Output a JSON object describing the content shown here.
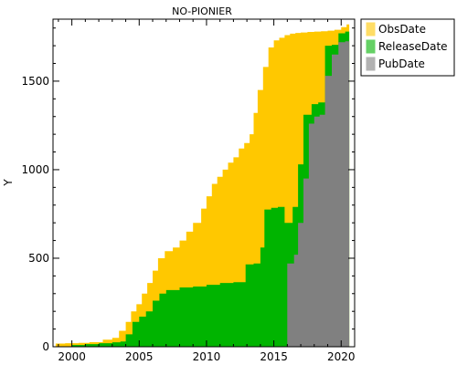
{
  "chart_data": {
    "type": "area",
    "title": "NO-PIONIER",
    "xlabel": "",
    "ylabel": "Y",
    "xlim": [
      1998.6,
      2021.0
    ],
    "ylim": [
      0,
      1850
    ],
    "xticks": [
      2000,
      2005,
      2010,
      2015,
      2020
    ],
    "yticks": [
      0,
      500,
      1000,
      1500
    ],
    "grid": false,
    "legend_position": "top-right-outside",
    "series": [
      {
        "name": "ObsDate",
        "color": "#ffc800",
        "x": [
          1998.8,
          1999.5,
          2000.5,
          2001.3,
          2002.3,
          2003.0,
          2003.5,
          2004.0,
          2004.4,
          2004.8,
          2005.2,
          2005.6,
          2006.0,
          2006.4,
          2006.9,
          2007.5,
          2008.0,
          2008.5,
          2009.0,
          2009.6,
          2010.0,
          2010.4,
          2010.8,
          2011.2,
          2011.6,
          2012.0,
          2012.4,
          2012.8,
          2013.2,
          2013.5,
          2013.8,
          2014.2,
          2014.6,
          2015.0,
          2015.4,
          2015.8,
          2016.2,
          2016.6,
          2017.0,
          2017.5,
          2018.0,
          2018.5,
          2019.0,
          2019.5,
          2020.0,
          2020.4,
          2020.6
        ],
        "y": [
          18,
          20,
          22,
          26,
          40,
          50,
          90,
          140,
          200,
          240,
          300,
          360,
          430,
          500,
          540,
          560,
          600,
          650,
          700,
          780,
          850,
          920,
          960,
          1000,
          1040,
          1070,
          1120,
          1150,
          1200,
          1320,
          1450,
          1580,
          1690,
          1730,
          1745,
          1760,
          1768,
          1772,
          1775,
          1778,
          1780,
          1782,
          1785,
          1790,
          1805,
          1820,
          1845
        ]
      },
      {
        "name": "ReleaseDate",
        "color": "#00b400",
        "x": [
          1998.8,
          2000.0,
          2001.0,
          2002.0,
          2003.0,
          2003.6,
          2004.0,
          2004.5,
          2005.0,
          2005.5,
          2006.0,
          2006.5,
          2007.0,
          2008.0,
          2009.0,
          2010.0,
          2011.0,
          2012.0,
          2012.9,
          2013.5,
          2014.0,
          2014.3,
          2014.8,
          2015.3,
          2015.8,
          2016.4,
          2016.8,
          2017.2,
          2017.8,
          2018.3,
          2018.8,
          2019.3,
          2019.8,
          2020.3,
          2020.6
        ],
        "y": [
          0,
          10,
          15,
          20,
          25,
          30,
          70,
          140,
          170,
          200,
          260,
          300,
          320,
          335,
          340,
          350,
          360,
          365,
          465,
          470,
          560,
          775,
          785,
          790,
          700,
          790,
          1030,
          1310,
          1370,
          1380,
          1700,
          1705,
          1770,
          1780,
          1830
        ]
      },
      {
        "name": "PubDate",
        "color": "#808080",
        "x": [
          1998.8,
          2015.5,
          2016.0,
          2016.5,
          2016.8,
          2017.2,
          2017.6,
          2018.0,
          2018.4,
          2018.8,
          2019.3,
          2019.8,
          2020.3,
          2020.6
        ],
        "y": [
          0,
          0,
          470,
          520,
          700,
          950,
          1260,
          1300,
          1310,
          1530,
          1650,
          1720,
          1725,
          1780
        ]
      }
    ]
  }
}
